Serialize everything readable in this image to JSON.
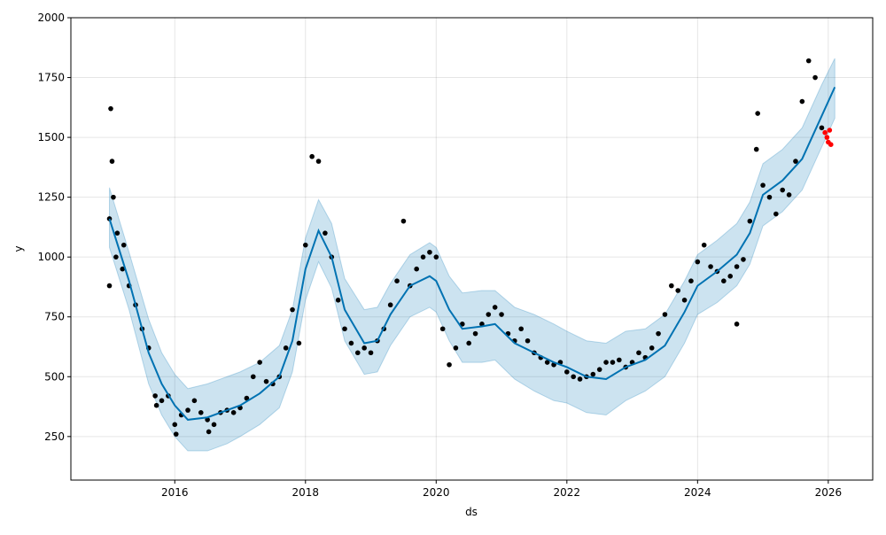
{
  "chart_data": {
    "type": "line",
    "title": "",
    "xlabel": "ds",
    "ylabel": "y",
    "xlim": [
      2014.41,
      2026.68
    ],
    "ylim": [
      68,
      2000
    ],
    "grid": true,
    "x_ticks": [
      2016,
      2018,
      2020,
      2022,
      2024,
      2026
    ],
    "x_tick_labels": [
      "2016",
      "2018",
      "2020",
      "2022",
      "2024",
      "2026"
    ],
    "y_ticks": [
      250,
      500,
      750,
      1000,
      1250,
      1500,
      1750,
      2000
    ],
    "y_tick_labels": [
      "250",
      "500",
      "750",
      "1000",
      "1250",
      "1500",
      "1750",
      "2000"
    ],
    "colors": {
      "forecast": "#0072B2",
      "band": "#0072B2",
      "actual": "#000000",
      "test": "#FF0000"
    },
    "forecast": {
      "x": [
        2015.0,
        2015.3,
        2015.6,
        2015.8,
        2016.0,
        2016.2,
        2016.5,
        2016.8,
        2017.0,
        2017.3,
        2017.6,
        2017.8,
        2018.0,
        2018.2,
        2018.4,
        2018.6,
        2018.9,
        2019.1,
        2019.3,
        2019.6,
        2019.9,
        2020.0,
        2020.2,
        2020.4,
        2020.7,
        2020.9,
        2021.2,
        2021.5,
        2021.8,
        2022.0,
        2022.3,
        2022.6,
        2022.9,
        2023.2,
        2023.5,
        2023.8,
        2024.0,
        2024.3,
        2024.6,
        2024.8,
        2025.0,
        2025.3,
        2025.6,
        2025.9,
        2026.1
      ],
      "yhat": [
        1160,
        900,
        600,
        470,
        380,
        320,
        330,
        360,
        380,
        430,
        500,
        650,
        950,
        1110,
        1000,
        780,
        640,
        650,
        760,
        880,
        920,
        900,
        780,
        700,
        710,
        720,
        640,
        600,
        560,
        540,
        500,
        490,
        540,
        570,
        630,
        770,
        880,
        940,
        1010,
        1100,
        1260,
        1320,
        1410,
        1590,
        1710
      ],
      "yhat_lower": [
        1040,
        780,
        470,
        340,
        250,
        190,
        190,
        220,
        250,
        300,
        370,
        520,
        820,
        980,
        870,
        650,
        510,
        520,
        630,
        750,
        790,
        770,
        650,
        560,
        560,
        570,
        490,
        440,
        400,
        390,
        350,
        340,
        400,
        440,
        500,
        640,
        760,
        810,
        880,
        970,
        1130,
        1190,
        1280,
        1460,
        1580
      ],
      "yhat_upper": [
        1290,
        1020,
        740,
        600,
        510,
        450,
        470,
        500,
        520,
        560,
        630,
        780,
        1080,
        1240,
        1140,
        910,
        780,
        790,
        890,
        1010,
        1060,
        1040,
        920,
        850,
        860,
        860,
        790,
        760,
        720,
        690,
        650,
        640,
        690,
        700,
        760,
        900,
        1010,
        1070,
        1140,
        1230,
        1390,
        1450,
        1540,
        1720,
        1830
      ]
    },
    "actual": {
      "x": [
        2015.0,
        2015.0,
        2015.02,
        2015.04,
        2015.06,
        2015.1,
        2015.12,
        2015.2,
        2015.22,
        2015.3,
        2015.4,
        2015.5,
        2015.6,
        2015.7,
        2015.72,
        2015.8,
        2015.9,
        2016.0,
        2016.02,
        2016.1,
        2016.2,
        2016.3,
        2016.4,
        2016.5,
        2016.52,
        2016.6,
        2016.7,
        2016.8,
        2016.9,
        2017.0,
        2017.1,
        2017.2,
        2017.3,
        2017.4,
        2017.5,
        2017.6,
        2017.7,
        2017.8,
        2017.9,
        2018.0,
        2018.1,
        2018.2,
        2018.3,
        2018.4,
        2018.5,
        2018.6,
        2018.7,
        2018.8,
        2018.9,
        2019.0,
        2019.1,
        2019.2,
        2019.3,
        2019.4,
        2019.5,
        2019.6,
        2019.7,
        2019.8,
        2019.9,
        2020.0,
        2020.1,
        2020.2,
        2020.3,
        2020.4,
        2020.5,
        2020.6,
        2020.7,
        2020.8,
        2020.9,
        2021.0,
        2021.1,
        2021.2,
        2021.3,
        2021.4,
        2021.5,
        2021.6,
        2021.7,
        2021.8,
        2021.9,
        2022.0,
        2022.1,
        2022.2,
        2022.3,
        2022.4,
        2022.5,
        2022.6,
        2022.7,
        2022.8,
        2022.9,
        2023.0,
        2023.1,
        2023.2,
        2023.3,
        2023.4,
        2023.5,
        2023.6,
        2023.7,
        2023.8,
        2023.9,
        2024.0,
        2024.1,
        2024.2,
        2024.3,
        2024.4,
        2024.5,
        2024.6,
        2024.6,
        2024.7,
        2024.8,
        2024.9,
        2024.92,
        2025.0,
        2025.1,
        2025.2,
        2025.3,
        2025.4,
        2025.5,
        2025.6,
        2025.7,
        2025.8,
        2025.9
      ],
      "y": [
        880,
        1160,
        1620,
        1400,
        1250,
        1000,
        1100,
        950,
        1050,
        880,
        800,
        700,
        620,
        420,
        380,
        400,
        420,
        300,
        260,
        340,
        360,
        400,
        350,
        320,
        270,
        300,
        350,
        360,
        350,
        370,
        410,
        500,
        560,
        480,
        470,
        500,
        620,
        780,
        640,
        1050,
        1420,
        1400,
        1100,
        1000,
        820,
        700,
        640,
        600,
        620,
        600,
        650,
        700,
        800,
        900,
        1150,
        880,
        950,
        1000,
        1020,
        1000,
        700,
        550,
        620,
        720,
        640,
        680,
        720,
        760,
        790,
        760,
        680,
        650,
        700,
        650,
        600,
        580,
        560,
        550,
        560,
        520,
        500,
        490,
        500,
        510,
        530,
        560,
        560,
        570,
        540,
        560,
        600,
        580,
        620,
        680,
        760,
        880,
        860,
        820,
        900,
        980,
        1050,
        960,
        940,
        900,
        920,
        960,
        720,
        990,
        1150,
        1450,
        1600,
        1300,
        1250,
        1180,
        1280,
        1260,
        1400,
        1650,
        1820,
        1750,
        1540
      ]
    },
    "test": {
      "x": [
        2025.95,
        2025.98,
        2026.0,
        2026.02,
        2026.04
      ],
      "y": [
        1520,
        1500,
        1480,
        1530,
        1470
      ]
    }
  }
}
